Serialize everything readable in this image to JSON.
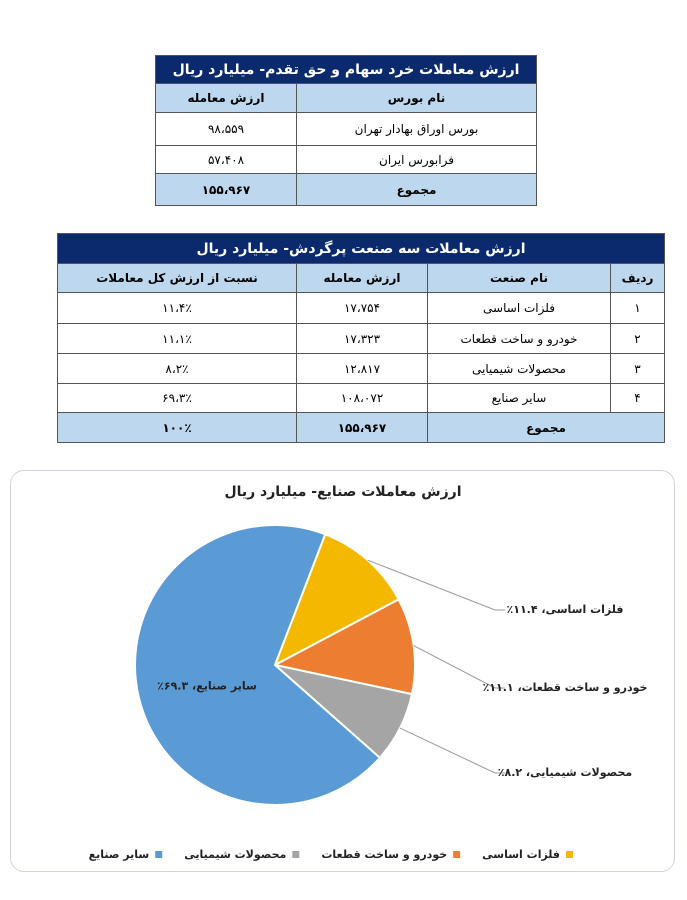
{
  "table1": {
    "title": "ارزش معاملات خرد سهام و حق تقدم- میلیارد ریال",
    "header": [
      "نام بورس",
      "ارزش معامله"
    ],
    "rows": [
      [
        "بورس اوراق بهادار تهران",
        "۹۸،۵۵۹"
      ],
      [
        "فرابورس ایران",
        "۵۷،۴۰۸"
      ]
    ],
    "total": [
      "مجموع",
      "۱۵۵،۹۶۷"
    ]
  },
  "table2": {
    "title": "ارزش معاملات سه صنعت پرگردش- میلیارد ریال",
    "header": [
      "ردیف",
      "نام صنعت",
      "ارزش معامله",
      "نسبت از ارزش کل معاملات"
    ],
    "rows": [
      [
        "۱",
        "فلزات اساسی",
        "۱۷،۷۵۴",
        "۱۱،۴٪"
      ],
      [
        "۲",
        "خودرو و ساخت قطعات",
        "۱۷،۳۲۳",
        "۱۱،۱٪"
      ],
      [
        "۳",
        "محصولات شیمیایی",
        "۱۲،۸۱۷",
        "۸،۲٪"
      ],
      [
        "۴",
        "سایر صنایع",
        "۱۰۸،۰۷۲",
        "۶۹،۳٪"
      ]
    ],
    "total": [
      "مجموع",
      "۱۵۵،۹۶۷",
      "۱۰۰٪"
    ]
  },
  "chart_data": {
    "type": "pie",
    "title": "ارزش معاملات صنایع- میلیارد ریال",
    "categories": [
      "فلزات اساسی",
      "خودرو و ساخت قطعات",
      "محصولات شیمیایی",
      "سایر صنایع"
    ],
    "values": [
      11.4,
      11.1,
      8.2,
      69.3
    ],
    "value_labels": [
      "فلزات اساسی، ۱۱.۴٪",
      "خودرو و ساخت قطعات، ۱۱.۱٪",
      "محصولات شیمیایی، ۸.۲٪",
      "سایر صنایع، ۶۹.۳٪"
    ],
    "colors": [
      "#f5b800",
      "#ed7d31",
      "#a5a5a5",
      "#5b9bd5"
    ]
  }
}
